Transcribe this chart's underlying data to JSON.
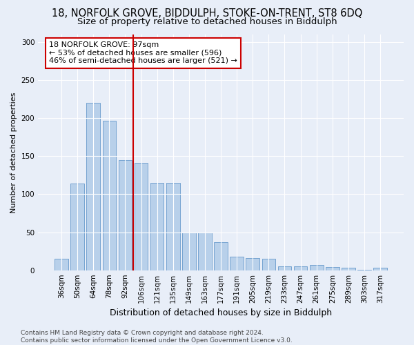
{
  "title": "18, NORFOLK GROVE, BIDDULPH, STOKE-ON-TRENT, ST8 6DQ",
  "subtitle": "Size of property relative to detached houses in Biddulph",
  "xlabel": "Distribution of detached houses by size in Biddulph",
  "ylabel": "Number of detached properties",
  "categories": [
    "36sqm",
    "50sqm",
    "64sqm",
    "78sqm",
    "92sqm",
    "106sqm",
    "121sqm",
    "135sqm",
    "149sqm",
    "163sqm",
    "177sqm",
    "191sqm",
    "205sqm",
    "219sqm",
    "233sqm",
    "247sqm",
    "261sqm",
    "275sqm",
    "289sqm",
    "303sqm",
    "317sqm"
  ],
  "values": [
    15,
    114,
    220,
    197,
    145,
    141,
    115,
    115,
    50,
    50,
    37,
    18,
    16,
    15,
    5,
    5,
    7,
    4,
    3,
    1,
    3
  ],
  "bar_color": "#b8d0ea",
  "bar_edge_color": "#6699cc",
  "vline_x": 4.5,
  "vline_color": "#cc0000",
  "annotation_text": "18 NORFOLK GROVE: 97sqm\n← 53% of detached houses are smaller (596)\n46% of semi-detached houses are larger (521) →",
  "annotation_box_color": "white",
  "annotation_box_edge_color": "#cc0000",
  "ylim": [
    0,
    310
  ],
  "yticks": [
    0,
    50,
    100,
    150,
    200,
    250,
    300
  ],
  "bg_color": "#e8eef8",
  "plot_bg_color": "#e8eef8",
  "footer_text": "Contains HM Land Registry data © Crown copyright and database right 2024.\nContains public sector information licensed under the Open Government Licence v3.0.",
  "title_fontsize": 10.5,
  "subtitle_fontsize": 9.5,
  "xlabel_fontsize": 9,
  "ylabel_fontsize": 8,
  "tick_fontsize": 7.5,
  "annotation_fontsize": 8,
  "footer_fontsize": 6.5
}
